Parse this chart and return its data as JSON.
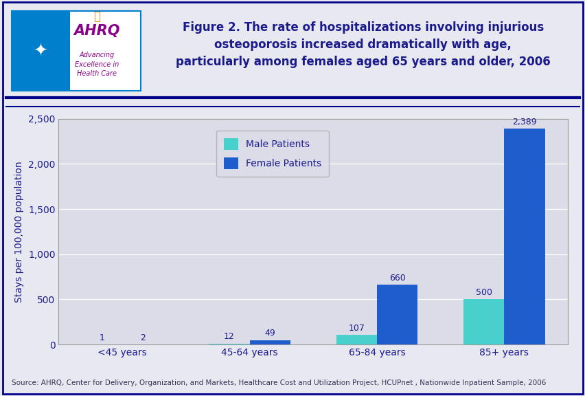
{
  "title_line1": "Figure 2. The rate of hospitalizations involving injurious",
  "title_line2": "osteoporosis increased dramatically with age,",
  "title_line3": "particularly among females aged 65 years and older, 2006",
  "categories": [
    "<45 years",
    "45-64 years",
    "65-84 years",
    "85+ years"
  ],
  "male_values": [
    1,
    12,
    107,
    500
  ],
  "female_values": [
    2,
    49,
    660,
    2389
  ],
  "male_color": "#48D1CC",
  "female_color": "#1E5ECC",
  "ylabel": "Stays per 100,000 population",
  "ylim": [
    0,
    2500
  ],
  "yticks": [
    0,
    500,
    1000,
    1500,
    2000,
    2500
  ],
  "ytick_labels": [
    "0",
    "500",
    "1,000",
    "1,500",
    "2,000",
    "2,500"
  ],
  "legend_male": "Male Patients",
  "legend_female": "Female Patients",
  "source_text": "Source: AHRQ, Center for Delivery, Organization, and Markets, Healthcare Cost and Utilization Project, HCUPnet , Nationwide Inpatient Sample, 2006",
  "title_color": "#1A1A8C",
  "axis_label_color": "#1A1A8C",
  "tick_label_color": "#1A1A8C",
  "bar_value_color": "#1A1A8C",
  "background_color": "#E8E8F0",
  "plot_bg_color": "#DCDCE8",
  "border_color": "#00008B",
  "header_bg_color": "#E8E8F0",
  "title_fontsize": 12,
  "axis_fontsize": 10,
  "tick_fontsize": 10,
  "bar_width": 0.32,
  "source_fontsize": 7.5,
  "logo_border_color": "#0080CC",
  "ahrq_color": "#8B008B",
  "dotgrid_color": "#C0C0D0"
}
